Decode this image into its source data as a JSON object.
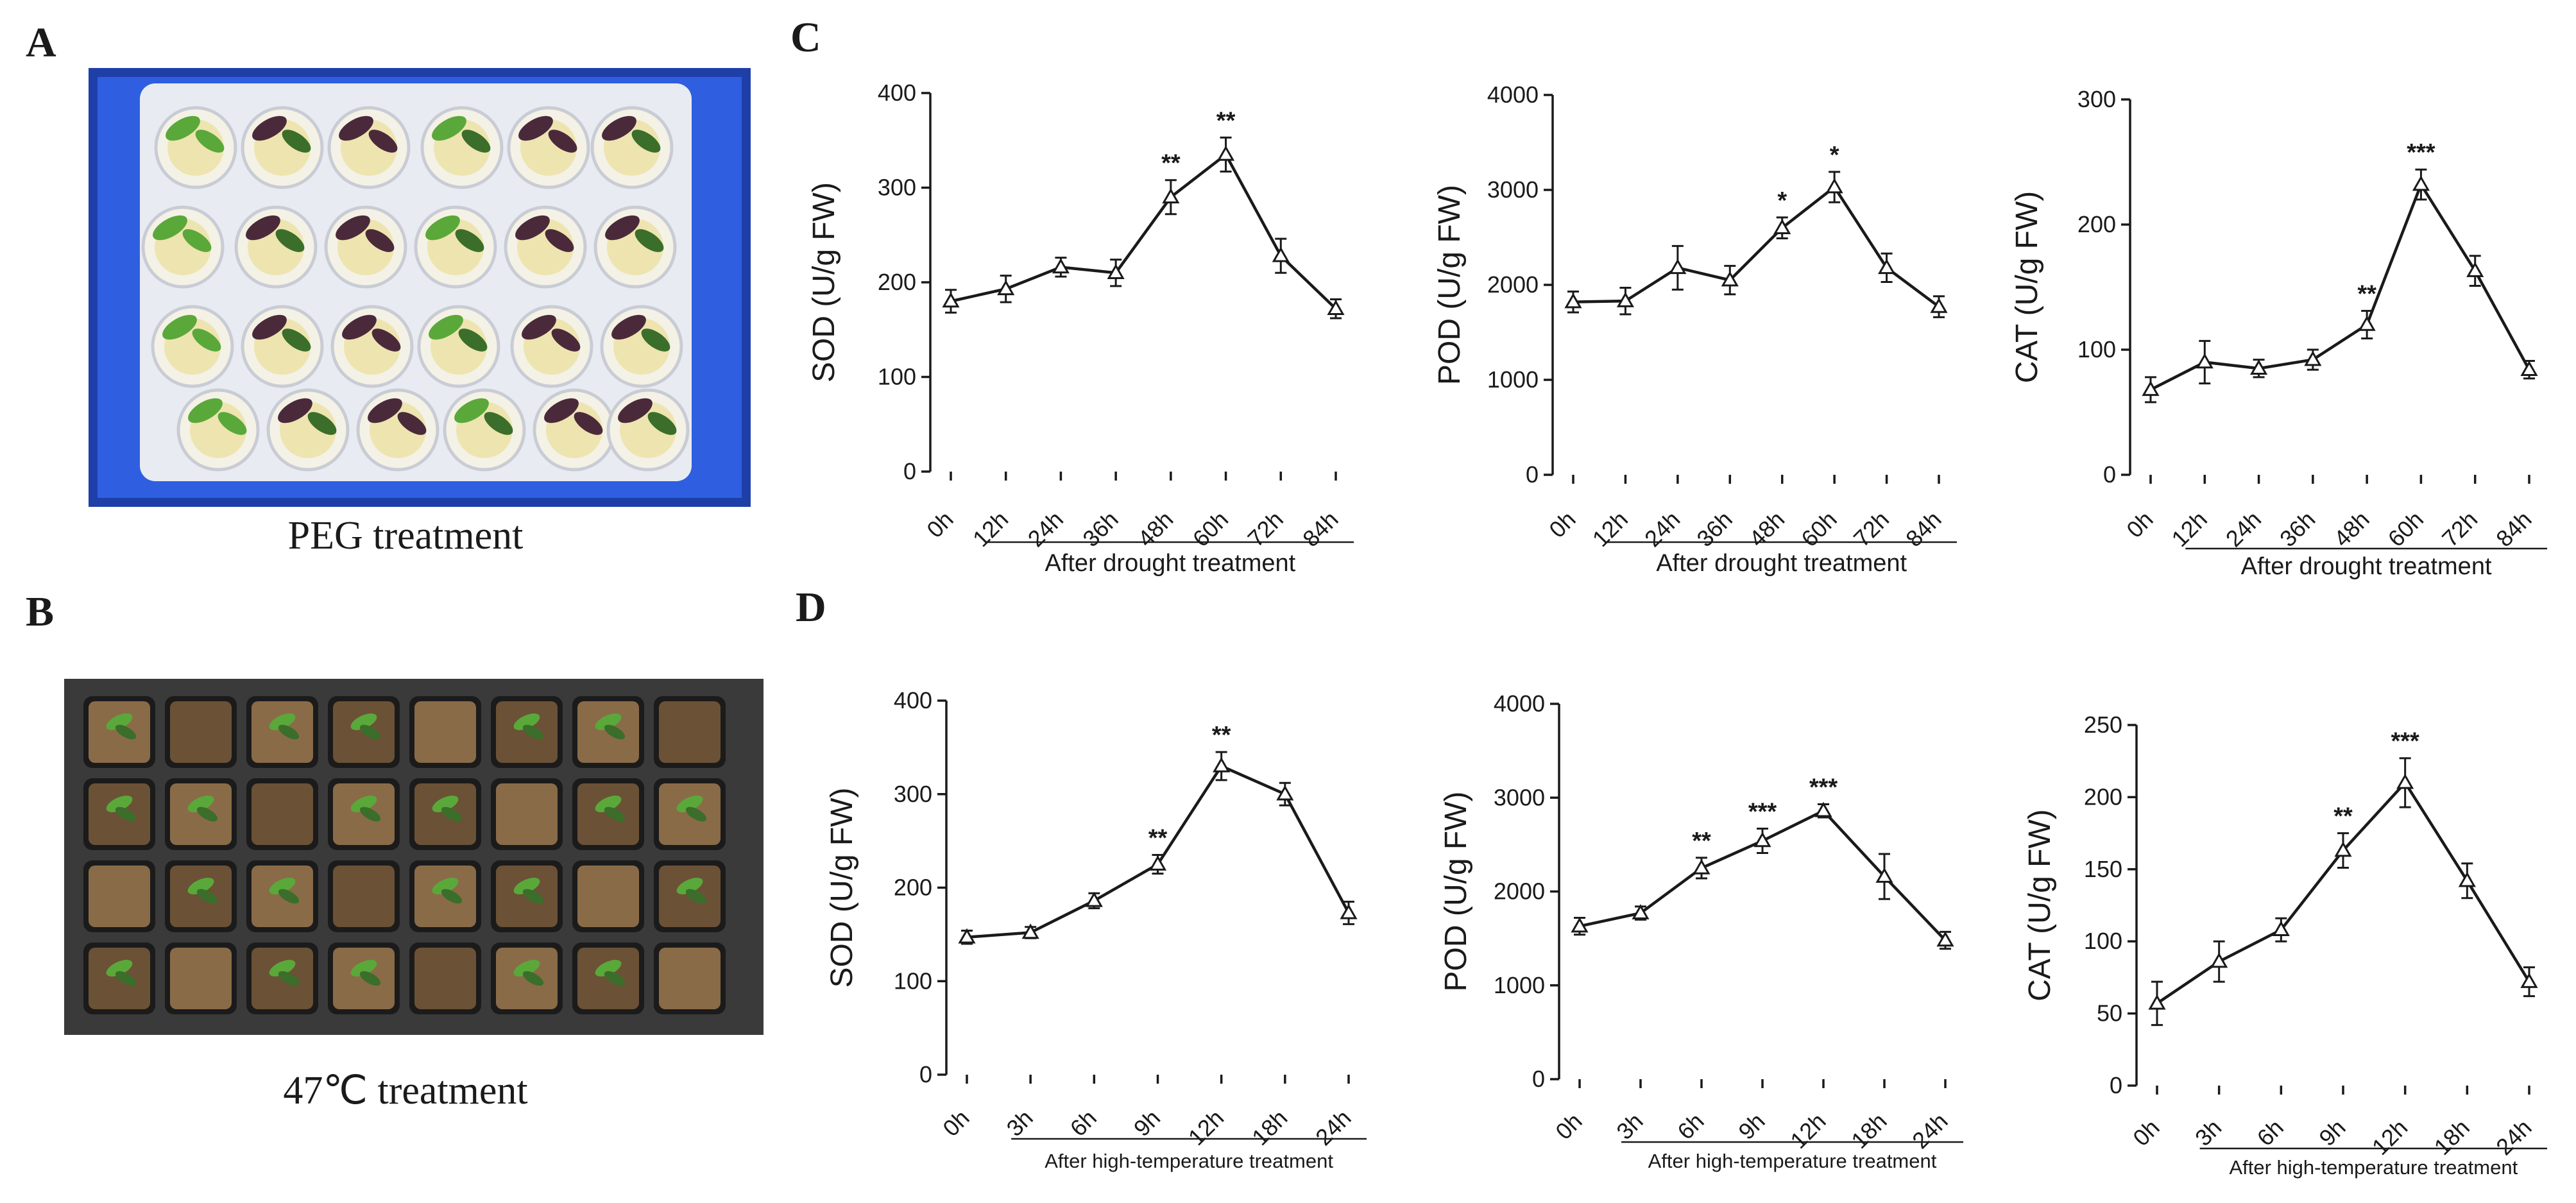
{
  "panels": {
    "a": {
      "letter": "A",
      "caption": "PEG treatment",
      "photo": "photo of tomato seedlings in blue tray with cups"
    },
    "b": {
      "letter": "B",
      "caption": "47℃ treatment",
      "photo": "photo of tomato seedlings in soil plug tray"
    },
    "c": {
      "letter": "C"
    },
    "d": {
      "letter": "D"
    }
  },
  "colors": {
    "tray_blue": "#2f5fe0",
    "tray_blue_dark": "#1f3fa8",
    "foam": "#e8ecf2",
    "soil": "#6b5136",
    "soil_light": "#8a6b48",
    "tray_black": "#1b1b1b",
    "leaf": "#5aa83a",
    "leaf_dark": "#3b6e2a",
    "purple_leaf": "#4a2a3a",
    "line": "#1a1a1a"
  },
  "chart_data": [
    {
      "id": "c1",
      "type": "line",
      "panel": "C",
      "categories": [
        "0h",
        "12h",
        "24h",
        "36h",
        "48h",
        "60h",
        "72h",
        "84h"
      ],
      "values": [
        180,
        193,
        216,
        210,
        290,
        335,
        228,
        172
      ],
      "errors": [
        12,
        14,
        10,
        14,
        18,
        18,
        18,
        10
      ],
      "significance": [
        "",
        "",
        "",
        "",
        "**",
        "**",
        "",
        ""
      ],
      "ylabel": "SOD (U/g  FW)",
      "xlabel": "After drought treatment",
      "ylim": [
        0,
        400
      ],
      "yticks": [
        0,
        100,
        200,
        300,
        400
      ]
    },
    {
      "id": "c2",
      "type": "line",
      "panel": "C",
      "categories": [
        "0h",
        "12h",
        "24h",
        "36h",
        "48h",
        "60h",
        "72h",
        "84h"
      ],
      "values": [
        1820,
        1830,
        2180,
        2050,
        2600,
        3030,
        2180,
        1770
      ],
      "errors": [
        110,
        140,
        230,
        150,
        110,
        160,
        150,
        110
      ],
      "significance": [
        "",
        "",
        "",
        "",
        "*",
        "*",
        "",
        ""
      ],
      "ylabel": "POD (U/g  FW)",
      "xlabel": "After drought treatment",
      "ylim": [
        0,
        4000
      ],
      "yticks": [
        0,
        1000,
        2000,
        3000,
        4000
      ]
    },
    {
      "id": "c3",
      "type": "line",
      "panel": "C",
      "categories": [
        "0h",
        "12h",
        "24h",
        "36h",
        "48h",
        "60h",
        "72h",
        "84h"
      ],
      "values": [
        68,
        90,
        85,
        92,
        120,
        232,
        163,
        84
      ],
      "errors": [
        10,
        17,
        7,
        8,
        11,
        12,
        12,
        7
      ],
      "significance": [
        "",
        "",
        "",
        "",
        "**",
        "***",
        "",
        ""
      ],
      "ylabel": "CAT (U/g  FW)",
      "xlabel": "After drought treatment",
      "ylim": [
        0,
        300
      ],
      "yticks": [
        0,
        100,
        200,
        300
      ]
    },
    {
      "id": "d1",
      "type": "line",
      "panel": "D",
      "categories": [
        "0h",
        "3h",
        "6h",
        "9h",
        "12h",
        "18h",
        "24h"
      ],
      "values": [
        147,
        152,
        186,
        225,
        330,
        300,
        173
      ],
      "errors": [
        7,
        6,
        8,
        10,
        15,
        12,
        12
      ],
      "significance": [
        "",
        "",
        "",
        "**",
        "**",
        "",
        ""
      ],
      "ylabel": "SOD (U/g  FW)",
      "xlabel": "After high-temperature treatment",
      "ylim": [
        0,
        400
      ],
      "yticks": [
        0,
        100,
        200,
        300,
        400
      ]
    },
    {
      "id": "d2",
      "type": "line",
      "panel": "D",
      "categories": [
        "0h",
        "3h",
        "6h",
        "9h",
        "12h",
        "18h",
        "24h"
      ],
      "values": [
        1630,
        1770,
        2250,
        2540,
        2860,
        2160,
        1480
      ],
      "errors": [
        90,
        70,
        110,
        130,
        70,
        240,
        90
      ],
      "significance": [
        "",
        "",
        "**",
        "***",
        "***",
        "",
        ""
      ],
      "ylabel": "POD (U/g  FW)",
      "xlabel": "After high-temperature treatment",
      "ylim": [
        0,
        4000
      ],
      "yticks": [
        0,
        1000,
        2000,
        3000,
        4000
      ]
    },
    {
      "id": "d3",
      "type": "line",
      "panel": "D",
      "categories": [
        "0h",
        "3h",
        "6h",
        "9h",
        "12h",
        "18h",
        "24h"
      ],
      "values": [
        57,
        86,
        108,
        163,
        210,
        142,
        72
      ],
      "errors": [
        15,
        14,
        8,
        12,
        17,
        12,
        10
      ],
      "significance": [
        "",
        "",
        "",
        "**",
        "***",
        "",
        ""
      ],
      "ylabel": "CAT (U/g  FW)",
      "xlabel": "After high-temperature treatment",
      "ylim": [
        0,
        250
      ],
      "yticks": [
        0,
        50,
        100,
        150,
        200,
        250
      ]
    }
  ]
}
